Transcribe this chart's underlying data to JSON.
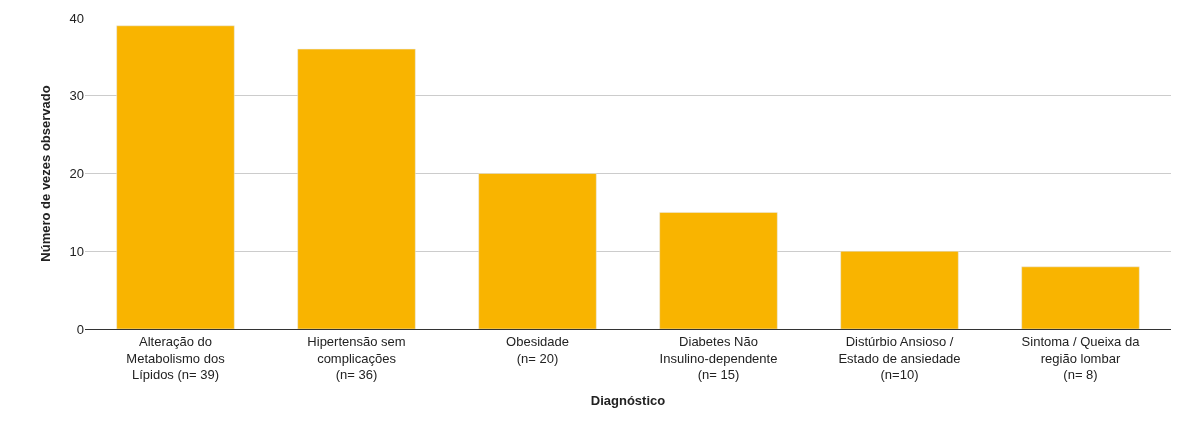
{
  "chart_data": {
    "type": "bar",
    "xlabel": "Diagnóstico",
    "ylabel": "Número de vezes observado",
    "categories": [
      "Alteração do\nMetabolismo dos\nLípidos (n= 39)",
      "Hipertensão sem\ncomplicações\n(n= 36)",
      "Obesidade\n(n= 20)",
      "Diabetes Não\nInsulino-dependente\n(n= 15)",
      "Distúrbio Ansioso /\nEstado de ansiedade\n(n=10)",
      "Sintoma / Queixa da\nregião lombar\n(n= 8)"
    ],
    "values": [
      39,
      36,
      20,
      15,
      10,
      8
    ],
    "color": "#f9b400",
    "ylim": [
      0,
      40
    ],
    "yticks": [
      0,
      10,
      20,
      30,
      40
    ],
    "grid": "y"
  }
}
